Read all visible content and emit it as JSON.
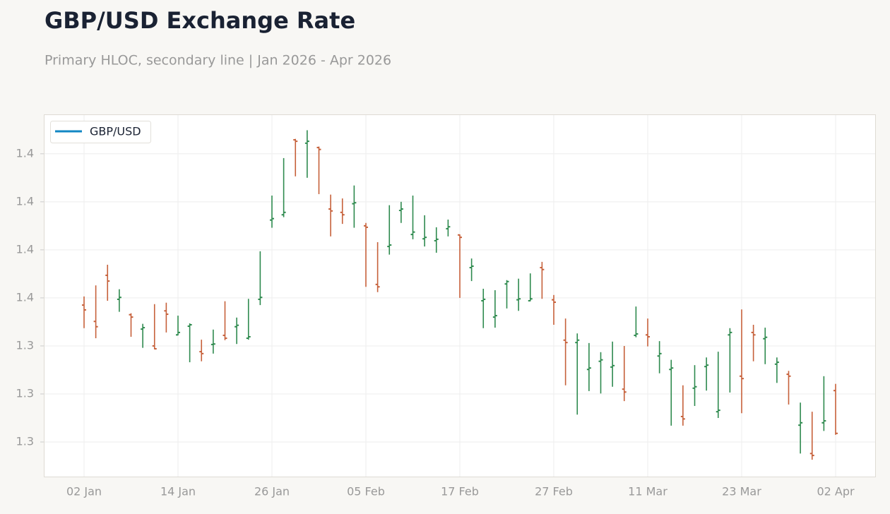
{
  "chart_data": {
    "type": "ohlc",
    "title": "GBP/USD Exchange Rate",
    "subtitle": "Primary HLOC, secondary line | Jan 2026 - Apr 2026",
    "x": [
      "02 Jan",
      null,
      null,
      null,
      null,
      null,
      null,
      null,
      "14 Jan",
      null,
      null,
      null,
      null,
      null,
      null,
      null,
      "26 Jan",
      null,
      null,
      null,
      null,
      null,
      null,
      null,
      "05 Feb",
      null,
      null,
      null,
      null,
      null,
      null,
      null,
      "17 Feb",
      null,
      null,
      null,
      null,
      null,
      null,
      null,
      "27 Feb",
      null,
      null,
      null,
      null,
      null,
      null,
      null,
      "11 Mar",
      null,
      null,
      null,
      null,
      null,
      null,
      null,
      "23 Mar",
      null,
      null,
      null,
      null,
      null,
      null,
      null,
      "02 Apr"
    ],
    "series": [
      {
        "name": "GBP/USD",
        "color": "#1287c4",
        "up_color": "#2e8a4e",
        "down_color": "#c6603a",
        "open": [
          1.3485,
          1.3451,
          1.3547,
          1.3497,
          1.3465,
          1.3435,
          1.34,
          1.3473,
          1.3423,
          1.3441,
          1.3388,
          1.3403,
          1.3422,
          1.344,
          1.3416,
          1.3497,
          1.3662,
          1.3673,
          1.3829,
          1.3822,
          1.3813,
          1.3685,
          1.3678,
          1.3696,
          1.365,
          1.3528,
          1.3607,
          1.3682,
          1.3632,
          1.3623,
          1.3619,
          1.3644,
          1.3631,
          1.3563,
          1.3494,
          1.346,
          1.3529,
          1.3496,
          1.3494,
          1.3563,
          1.3496,
          1.3412,
          1.3407,
          1.3351,
          1.3368,
          1.3356,
          1.331,
          1.3422,
          1.3423,
          1.3379,
          1.3351,
          1.3253,
          1.3312,
          1.3357,
          1.3263,
          1.3423,
          1.3337,
          1.3428,
          1.3415,
          1.3362,
          1.3341,
          1.3235,
          1.3176,
          1.324,
          1.3307
        ],
        "high": [
          1.3503,
          1.3526,
          1.3569,
          1.3518,
          1.3468,
          1.3446,
          1.3487,
          1.349,
          1.3463,
          1.3447,
          1.3413,
          1.3434,
          1.3493,
          1.3459,
          1.3498,
          1.3597,
          1.3713,
          1.3791,
          1.3831,
          1.3849,
          1.3815,
          1.3715,
          1.3707,
          1.3734,
          1.3656,
          1.3616,
          1.3693,
          1.37,
          1.3713,
          1.3672,
          1.3647,
          1.3663,
          1.3632,
          1.3582,
          1.3519,
          1.3516,
          1.3537,
          1.354,
          1.3551,
          1.3575,
          1.3506,
          1.3457,
          1.3426,
          1.3406,
          1.3387,
          1.3409,
          1.34,
          1.3482,
          1.3457,
          1.341,
          1.3371,
          1.3318,
          1.336,
          1.3376,
          1.3388,
          1.3437,
          1.3476,
          1.3444,
          1.3438,
          1.3376,
          1.3348,
          1.3282,
          1.3263,
          1.3337,
          1.3321
        ],
        "low": [
          1.3437,
          1.3416,
          1.3494,
          1.3471,
          1.3419,
          1.3396,
          1.3393,
          1.3428,
          1.3422,
          1.3366,
          1.3368,
          1.3384,
          1.3412,
          1.3404,
          1.3413,
          1.3485,
          1.3646,
          1.3668,
          1.3753,
          1.375,
          1.3716,
          1.3628,
          1.3654,
          1.3646,
          1.3523,
          1.3512,
          1.359,
          1.3656,
          1.3622,
          1.3607,
          1.3594,
          1.3628,
          1.35,
          1.3535,
          1.3437,
          1.3438,
          1.3478,
          1.3473,
          1.3493,
          1.3498,
          1.3444,
          1.3318,
          1.3257,
          1.3306,
          1.3301,
          1.3315,
          1.3285,
          1.3418,
          1.3399,
          1.3343,
          1.3234,
          1.3234,
          1.3275,
          1.3307,
          1.325,
          1.3303,
          1.326,
          1.3368,
          1.3362,
          1.3323,
          1.3278,
          1.3176,
          1.3163,
          1.3223,
          1.3215
        ],
        "close": [
          1.3475,
          1.344,
          1.3535,
          1.3501,
          1.346,
          1.3438,
          1.3394,
          1.3466,
          1.3428,
          1.3444,
          1.3384,
          1.3404,
          1.3416,
          1.3443,
          1.3419,
          1.3501,
          1.3665,
          1.3678,
          1.3826,
          1.3826,
          1.3809,
          1.3681,
          1.3673,
          1.3698,
          1.3647,
          1.3523,
          1.361,
          1.3685,
          1.3637,
          1.3626,
          1.3622,
          1.3648,
          1.3626,
          1.3566,
          1.3497,
          1.3463,
          1.3534,
          1.3498,
          1.3498,
          1.3559,
          1.3491,
          1.3407,
          1.3412,
          1.3354,
          1.3371,
          1.3359,
          1.3304,
          1.3425,
          1.3419,
          1.3384,
          1.3354,
          1.3248,
          1.3315,
          1.336,
          1.3266,
          1.3428,
          1.3332,
          1.3423,
          1.3418,
          1.3366,
          1.3337,
          1.324,
          1.3172,
          1.3244,
          1.3218
        ]
      }
    ],
    "ylim": [
      1.3128,
      1.3882
    ],
    "yticks": [
      {
        "value": 1.38,
        "label": "1.4"
      },
      {
        "value": 1.37,
        "label": "1.4"
      },
      {
        "value": 1.36,
        "label": "1.4"
      },
      {
        "value": 1.35,
        "label": "1.4"
      },
      {
        "value": 1.34,
        "label": "1.3"
      },
      {
        "value": 1.33,
        "label": "1.3"
      },
      {
        "value": 1.32,
        "label": "1.3"
      }
    ],
    "grid": true,
    "legend": "upper left"
  }
}
